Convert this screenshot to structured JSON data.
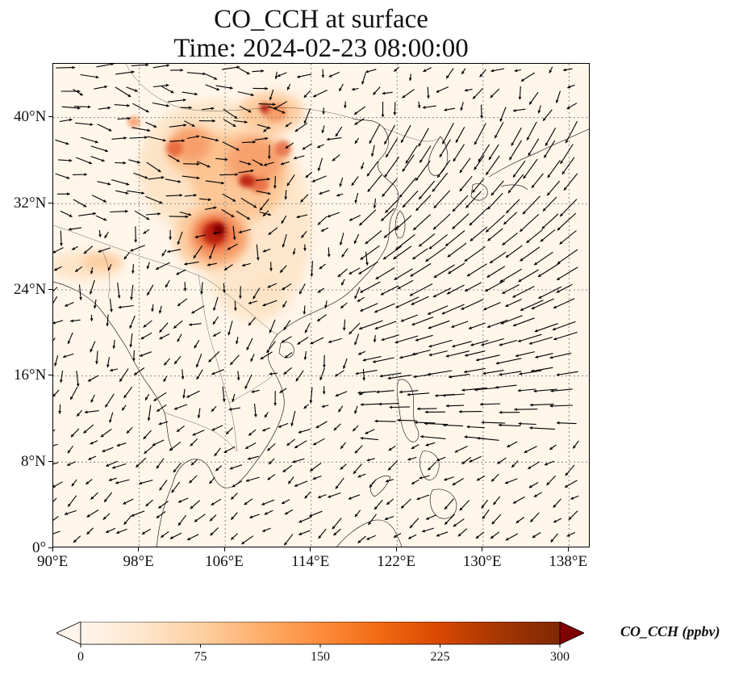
{
  "title": {
    "line1": "CO_CCH at surface",
    "line2": "Time: 2024-02-23 08:00:00"
  },
  "map": {
    "lon_range": [
      90,
      140
    ],
    "lat_range": [
      0,
      45
    ],
    "x_ticks": [
      {
        "value": 90,
        "label": "90°E"
      },
      {
        "value": 98,
        "label": "98°E"
      },
      {
        "value": 106,
        "label": "106°E"
      },
      {
        "value": 114,
        "label": "114°E"
      },
      {
        "value": 122,
        "label": "122°E"
      },
      {
        "value": 130,
        "label": "130°E"
      },
      {
        "value": 138,
        "label": "138°E"
      }
    ],
    "y_ticks": [
      {
        "value": 0,
        "label": "0°"
      },
      {
        "value": 8,
        "label": "8°N"
      },
      {
        "value": 16,
        "label": "16°N"
      },
      {
        "value": 24,
        "label": "24°N"
      },
      {
        "value": 32,
        "label": "32°N"
      },
      {
        "value": 40,
        "label": "40°N"
      }
    ],
    "gridlines": true,
    "field_background": "#fff6ea",
    "plume_colors": [
      "#fde3c4",
      "#fdc28f",
      "#f59561",
      "#e2582e",
      "#b91d10",
      "#7f0000"
    ]
  },
  "colorbar": {
    "label": "CO_CCH (ppbv)",
    "range": [
      0,
      300
    ],
    "ticks": [
      {
        "value": 0,
        "label": "0"
      },
      {
        "value": 75,
        "label": "75"
      },
      {
        "value": 150,
        "label": "150"
      },
      {
        "value": 225,
        "label": "225"
      },
      {
        "value": 300,
        "label": "300"
      }
    ],
    "colormap_stops": [
      "#fff5eb",
      "#fee6ce",
      "#fdd0a2",
      "#fdae6b",
      "#fd8d3c",
      "#f16913",
      "#d94801",
      "#a63603",
      "#7f2704"
    ],
    "extend": "both"
  }
}
